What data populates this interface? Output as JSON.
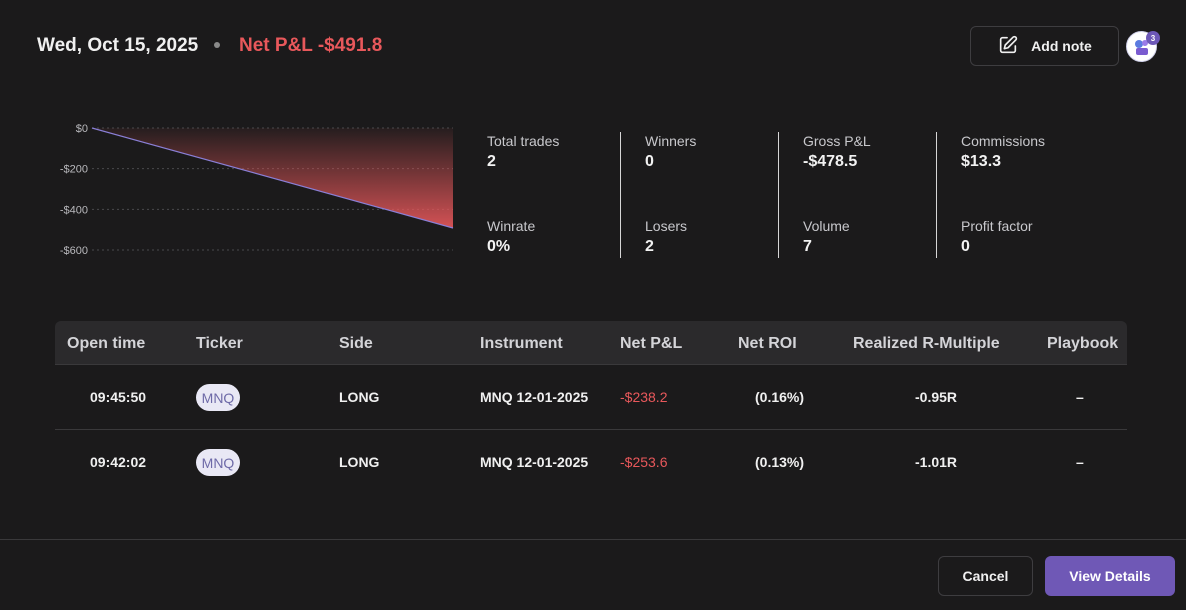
{
  "header": {
    "date": "Wed, Oct 15, 2025",
    "net_pnl": "Net P&L -$491.8",
    "add_note_label": "Add note",
    "avatar_badge": "3"
  },
  "chart_data": {
    "type": "area",
    "x": [
      0,
      1
    ],
    "values": [
      0,
      -491.8
    ],
    "title": "",
    "xlabel": "",
    "ylabel": "",
    "ylim": [
      -600,
      0
    ],
    "yticks": [
      0,
      -200,
      -400,
      -600
    ],
    "ytick_labels": [
      "$0",
      "-$200",
      "-$400",
      "-$600"
    ],
    "grid": true,
    "line_color": "#8a7fd6",
    "fill_color": "#e8585b"
  },
  "stats": [
    {
      "label": "Total trades",
      "value": "2"
    },
    {
      "label": "Winrate",
      "value": "0%"
    },
    {
      "label": "Winners",
      "value": "0"
    },
    {
      "label": "Losers",
      "value": "2"
    },
    {
      "label": "Gross P&L",
      "value": "-$478.5"
    },
    {
      "label": "Volume",
      "value": "7"
    },
    {
      "label": "Commissions",
      "value": "$13.3"
    },
    {
      "label": "Profit factor",
      "value": "0"
    }
  ],
  "table": {
    "columns": [
      "Open time",
      "Ticker",
      "Side",
      "Instrument",
      "Net P&L",
      "Net ROI",
      "Realized R-Multiple",
      "Playbook"
    ],
    "rows": [
      {
        "open_time": "09:45:50",
        "ticker": "MNQ",
        "side": "LONG",
        "instrument": "MNQ 12-01-2025",
        "net_pnl": "-$238.2",
        "net_roi": "(0.16%)",
        "r_multiple": "-0.95R",
        "playbook": "–"
      },
      {
        "open_time": "09:42:02",
        "ticker": "MNQ",
        "side": "LONG",
        "instrument": "MNQ 12-01-2025",
        "net_pnl": "-$253.6",
        "net_roi": "(0.13%)",
        "r_multiple": "-1.01R",
        "playbook": "–"
      }
    ]
  },
  "footer": {
    "cancel_label": "Cancel",
    "view_details_label": "View Details"
  },
  "colors": {
    "accent": "#6f58b6",
    "negative": "#e8585b",
    "background": "#1b1a1b"
  }
}
